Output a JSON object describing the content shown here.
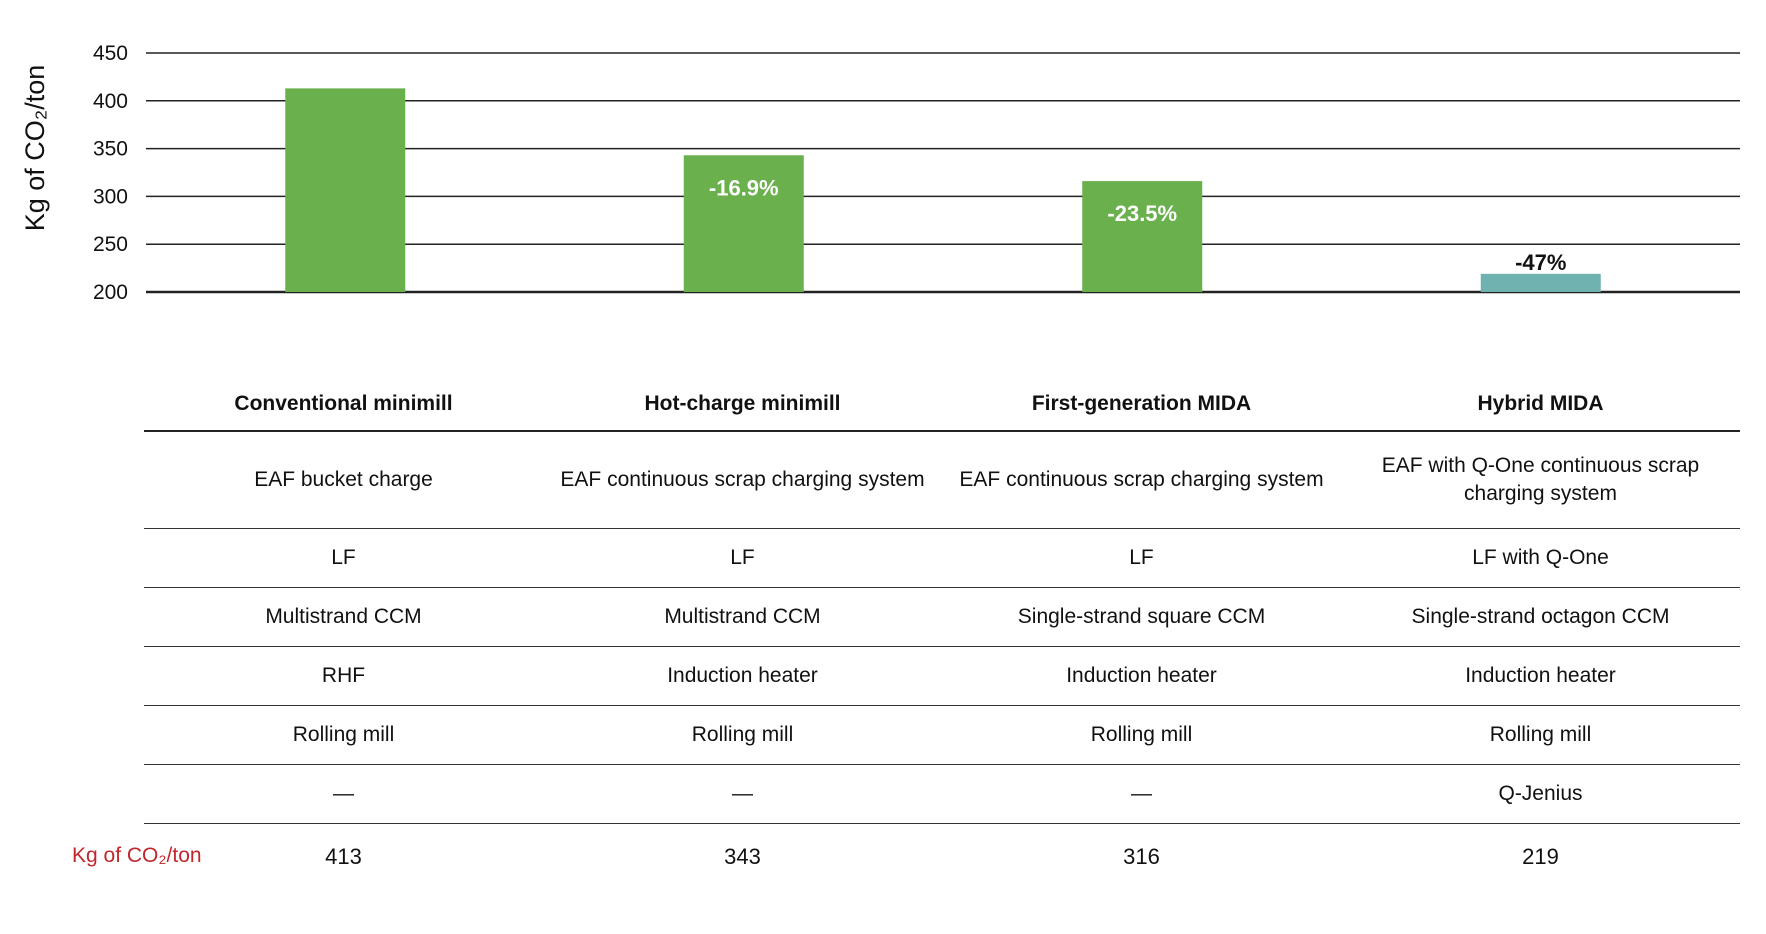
{
  "chart_data": {
    "type": "bar",
    "ylabel": "Kg of CO₂/ton",
    "ylim": [
      200,
      450
    ],
    "yticks": [
      200,
      250,
      300,
      350,
      400,
      450
    ],
    "grid": true,
    "categories": [
      "Conventional minimill",
      "Hot-charge minimill",
      "First-generation MIDA",
      "Hybrid MIDA"
    ],
    "values": [
      413,
      343,
      316,
      219
    ],
    "bar_labels": [
      "",
      "-16.9%",
      "-23.5%",
      "-47%"
    ],
    "bar_colors": [
      "#6ab04c",
      "#6ab04c",
      "#6ab04c",
      "#6fb2b0"
    ]
  },
  "table": {
    "headers": [
      "Conventional minimill",
      "Hot-charge minimill",
      "First-generation MIDA",
      "Hybrid MIDA"
    ],
    "rows": [
      [
        "EAF bucket charge",
        "EAF continuous scrap charging system",
        "EAF continuous scrap charging system",
        "EAF with Q-One continuous scrap charging system"
      ],
      [
        "LF",
        "LF",
        "LF",
        "LF with Q-One"
      ],
      [
        "Multistrand CCM",
        "Multistrand CCM",
        "Single-strand square CCM",
        "Single-strand octagon CCM"
      ],
      [
        "RHF",
        "Induction heater",
        "Induction heater",
        "Induction heater"
      ],
      [
        "Rolling mill",
        "Rolling mill",
        "Rolling mill",
        "Rolling mill"
      ],
      [
        "—",
        "—",
        "—",
        "Q-Jenius"
      ]
    ],
    "total_label": "Kg of CO₂/ton",
    "totals": [
      "413",
      "343",
      "316",
      "219"
    ]
  }
}
